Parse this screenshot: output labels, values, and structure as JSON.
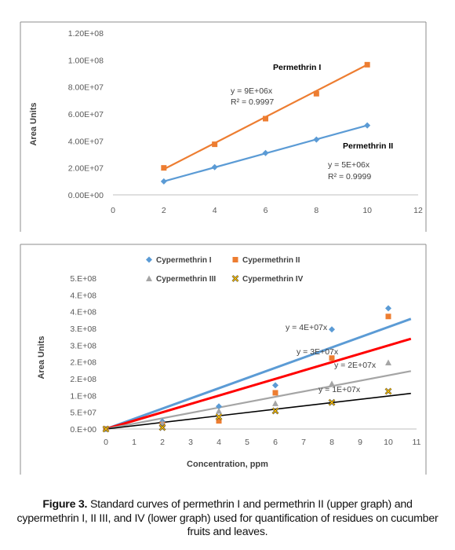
{
  "caption": {
    "label": "Figure 3.",
    "text": "Standard curves of permethrin I and permethrin II (upper graph) and cypermethrin I, II III, and IV (lower graph) used for quantification of residues on cucumber fruits and leaves."
  },
  "chart_data": [
    {
      "type": "scatter",
      "ylabel": "Area Units",
      "xlim": [
        0,
        12
      ],
      "ylim": [
        0,
        120000000
      ],
      "x_ticks": [
        "0",
        "2",
        "4",
        "6",
        "8",
        "10",
        "12"
      ],
      "y_ticks": [
        "0.00E+00",
        "2.00E+07",
        "4.00E+07",
        "6.00E+07",
        "8.00E+07",
        "1.00E+08",
        "1.20E+08"
      ],
      "grid": false,
      "series": [
        {
          "name": "Permethrin I",
          "color": "#ED7D31",
          "marker": "square",
          "x": [
            2,
            4,
            6,
            8,
            10
          ],
          "y": [
            20000000,
            37500000,
            56500000,
            75000000,
            96500000
          ],
          "trendline": {
            "x0": 2,
            "y0": 19000000,
            "x1": 10,
            "y1": 96500000
          },
          "equation": "y = 9E+06x",
          "r2": "R² = 0.9997"
        },
        {
          "name": "Permethrin II",
          "color": "#5B9BD5",
          "marker": "diamond",
          "x": [
            2,
            4,
            6,
            8,
            10
          ],
          "y": [
            10000000,
            20500000,
            31000000,
            41000000,
            51500000
          ],
          "trendline": {
            "x0": 2,
            "y0": 10000000,
            "x1": 10,
            "y1": 51500000
          },
          "equation": "y = 5E+06x",
          "r2": "R² = 0.9999"
        }
      ]
    },
    {
      "type": "scatter",
      "xlabel": "Concentration, ppm",
      "ylabel": "Area Units",
      "xlim": [
        0,
        11
      ],
      "ylim": [
        0,
        500000000
      ],
      "x_ticks": [
        "0",
        "1",
        "2",
        "3",
        "4",
        "5",
        "6",
        "7",
        "8",
        "9",
        "10",
        "11"
      ],
      "y_ticks": [
        "0.E+00",
        "5.E+07",
        "1.E+08",
        "2.E+08",
        "2.E+08",
        "3.E+08",
        "3.E+08",
        "4.E+08",
        "4.E+08",
        "5.E+08"
      ],
      "legend_position": "top",
      "grid": false,
      "series": [
        {
          "name": "Cypermethrin I",
          "color": "#5B9BD5",
          "marker": "diamond",
          "x": [
            0,
            2,
            4,
            6,
            8,
            10
          ],
          "y": [
            0,
            25000000,
            75000000,
            145000000,
            330000000,
            400000000
          ],
          "trendline": {
            "color": "#5B9BD5",
            "x1": 10.8,
            "y1": 365000000,
            "width": 3
          },
          "equation": "y = 4E+07x"
        },
        {
          "name": "Cypermethrin II",
          "color": "#ED7D31",
          "marker": "square",
          "x": [
            0,
            2,
            4,
            6,
            8,
            10
          ],
          "y": [
            0,
            15000000,
            27000000,
            120000000,
            235000000,
            373000000
          ],
          "trendline": {
            "color": "#FF0000",
            "x1": 10.8,
            "y1": 299000000,
            "width": 3
          },
          "equation": "y = 3E+07x"
        },
        {
          "name": "Cypermethrin III",
          "color": "#A5A5A5",
          "marker": "triangle",
          "x": [
            0,
            2,
            4,
            6,
            8,
            10
          ],
          "y": [
            0,
            20000000,
            60000000,
            85000000,
            150000000,
            220000000
          ],
          "trendline": {
            "color": "#A5A5A5",
            "x1": 10.8,
            "y1": 192000000,
            "width": 2.2
          },
          "equation": "y = 2E+07x"
        },
        {
          "name": "Cypermethrin IV",
          "color": "#FFC000",
          "marker": "x",
          "x": [
            0,
            2,
            4,
            6,
            8,
            10
          ],
          "y": [
            0,
            5000000,
            40000000,
            60000000,
            88000000,
            125000000
          ],
          "trendline": {
            "color": "#000000",
            "x1": 10.8,
            "y1": 118000000,
            "width": 1.6
          },
          "equation": "y = 1E+07x"
        }
      ]
    }
  ]
}
